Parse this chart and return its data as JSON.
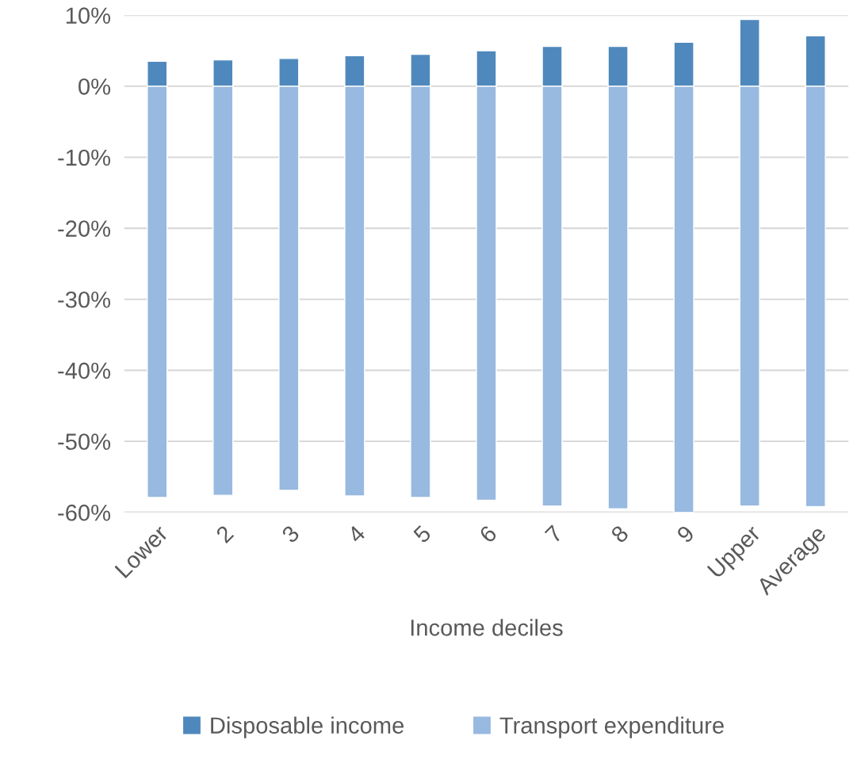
{
  "chart_data": {
    "type": "bar",
    "stacked": true,
    "xlabel": "Income deciles",
    "categories": [
      "Lower",
      "2",
      "3",
      "4",
      "5",
      "6",
      "7",
      "8",
      "9",
      "Upper",
      "Average"
    ],
    "series": [
      {
        "name": "Disposable income",
        "color": "#4f88bc",
        "values": [
          3.5,
          3.7,
          3.9,
          4.3,
          4.5,
          5.0,
          5.6,
          5.6,
          6.2,
          9.4,
          7.1
        ]
      },
      {
        "name": "Transport expenditure",
        "color": "#98b9e0",
        "values": [
          -57.9,
          -57.6,
          -56.9,
          -57.7,
          -57.9,
          -58.3,
          -59.1,
          -59.5,
          -60.0,
          -59.1,
          -59.2
        ]
      }
    ],
    "ylim": [
      -60,
      10
    ],
    "yticks": [
      {
        "value": 10,
        "label": "10%"
      },
      {
        "value": 0,
        "label": "0%"
      },
      {
        "value": -10,
        "label": "-10%"
      },
      {
        "value": -20,
        "label": "-20%"
      },
      {
        "value": -30,
        "label": "-30%"
      },
      {
        "value": -40,
        "label": "-40%"
      },
      {
        "value": -50,
        "label": "-50%"
      },
      {
        "value": -60,
        "label": "-60%"
      }
    ],
    "grid": "y",
    "legend": "bottom"
  }
}
